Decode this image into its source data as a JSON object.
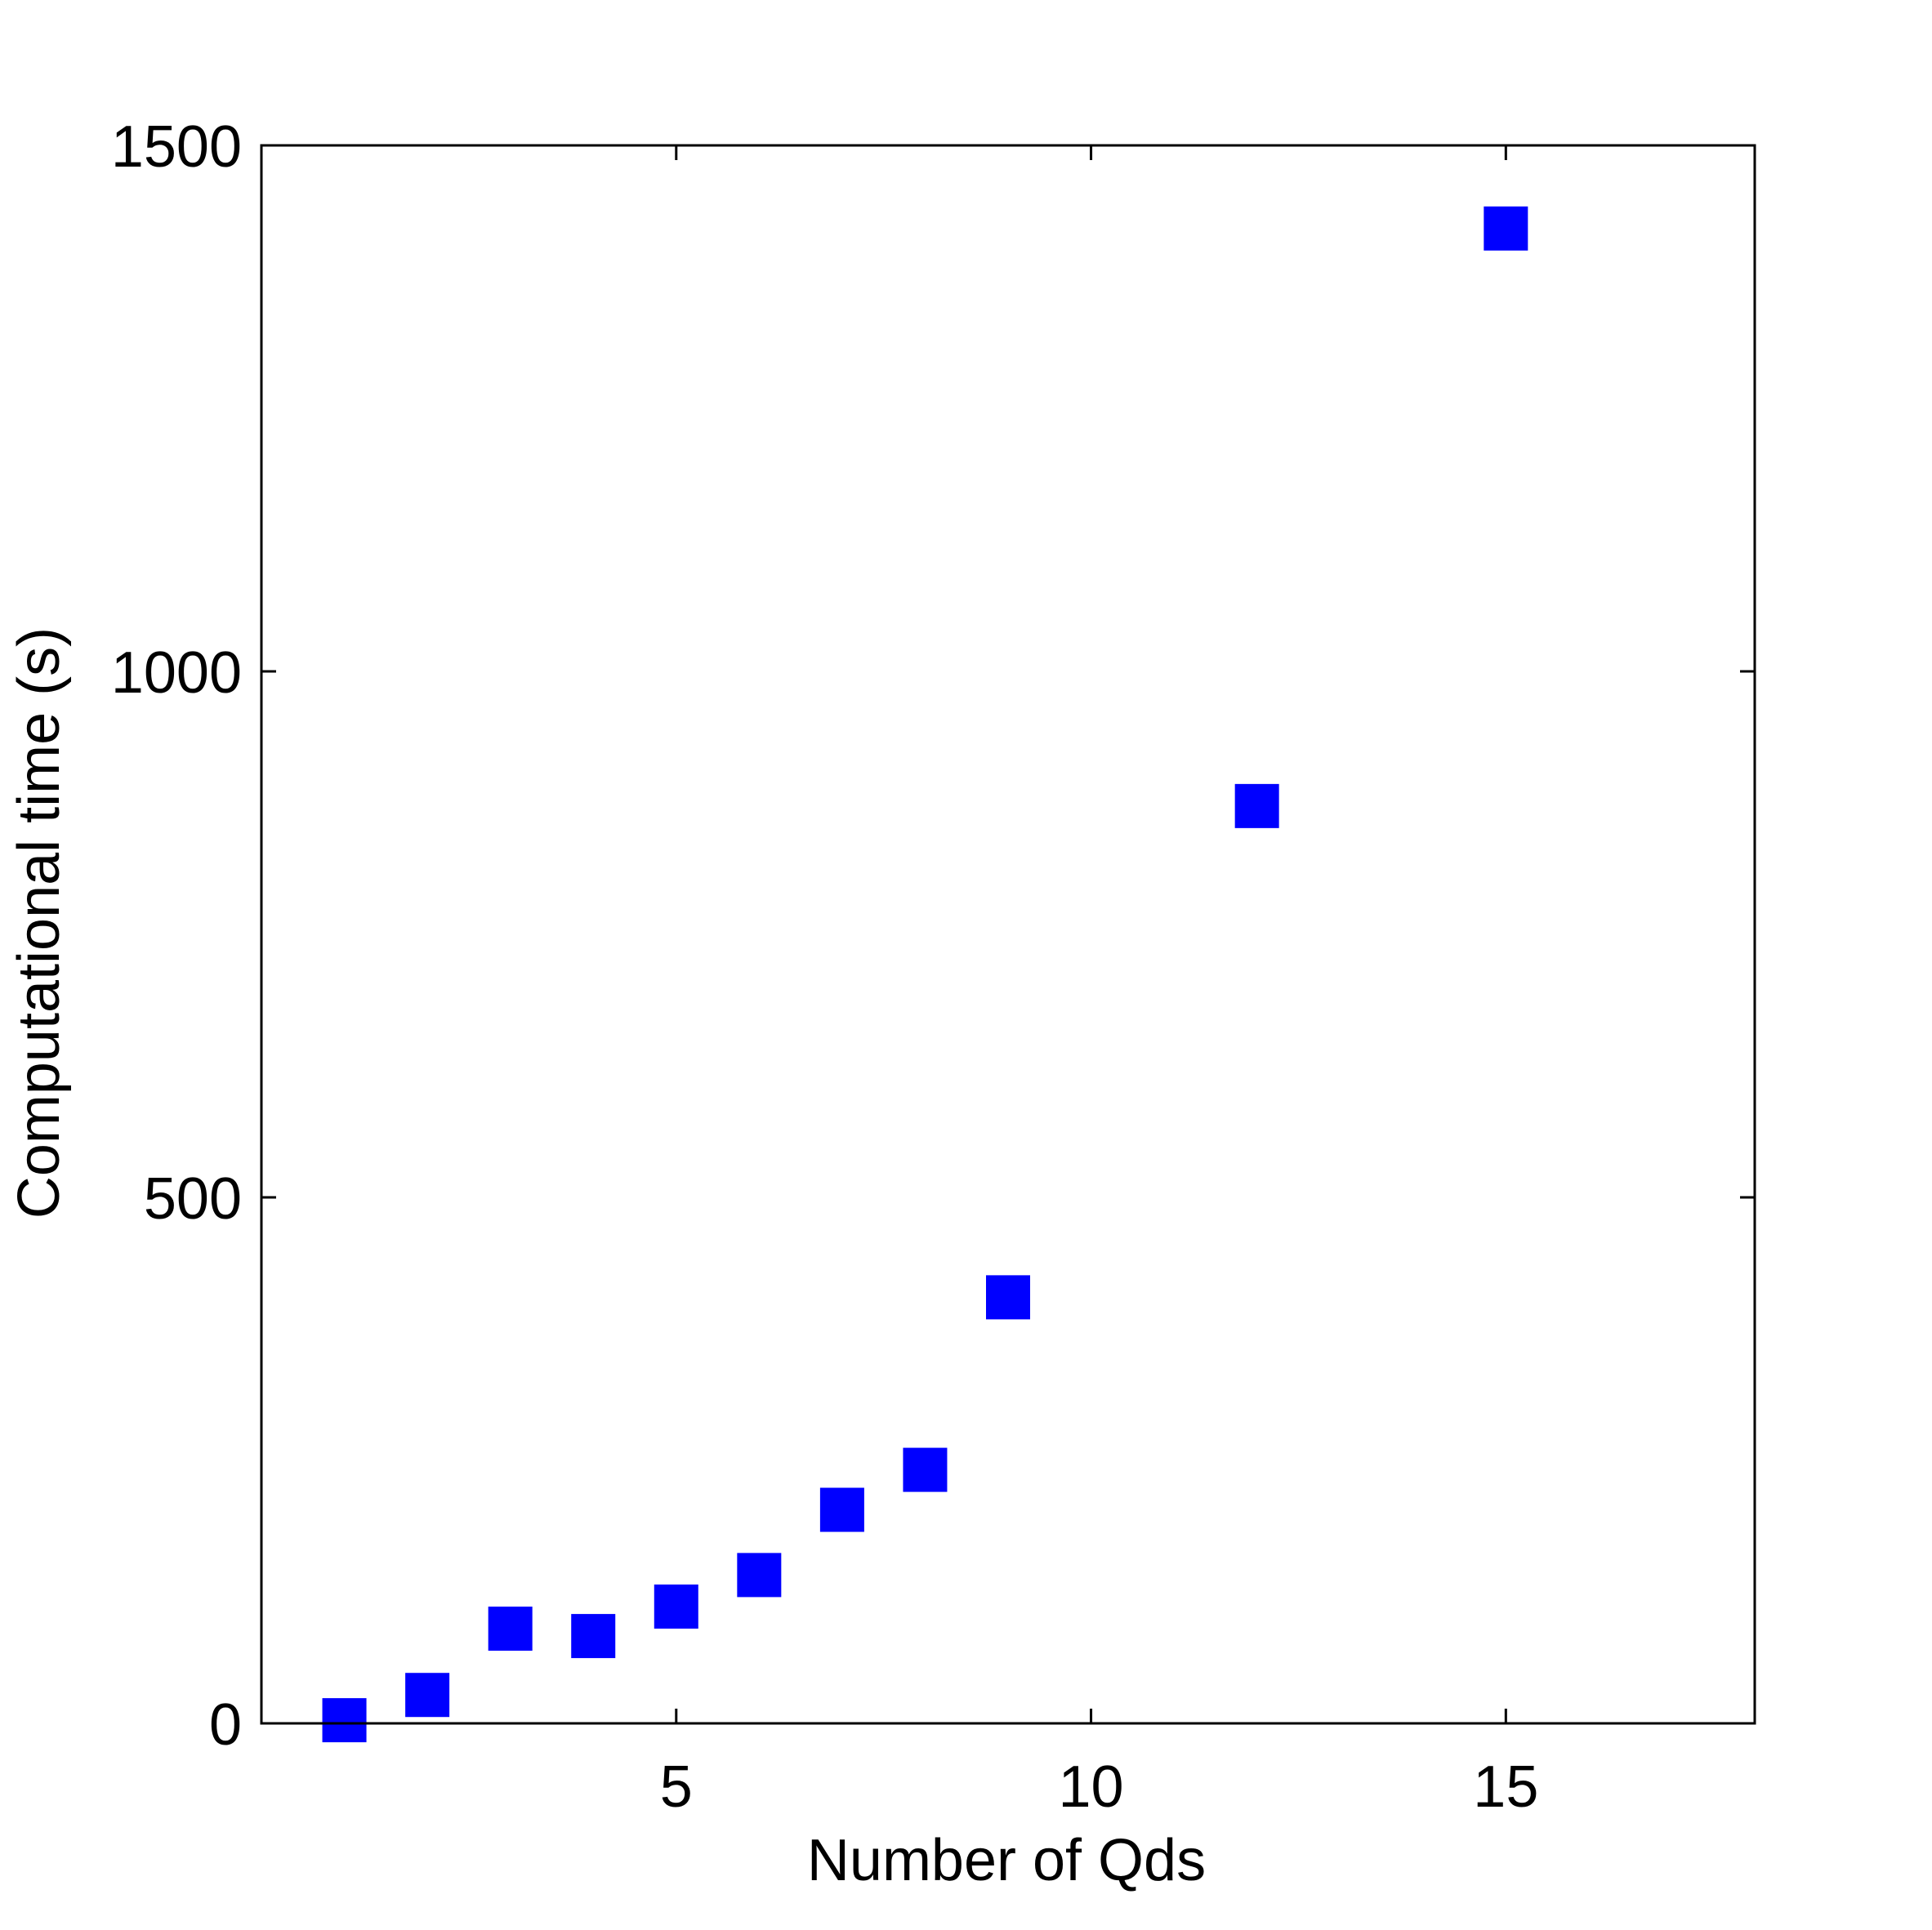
{
  "chart_data": {
    "type": "scatter",
    "title": "",
    "xlabel": "Number of Qds",
    "ylabel": "Computational time (s)",
    "xlim": [
      0,
      18
    ],
    "ylim": [
      0,
      1500
    ],
    "xticks": [
      5,
      10,
      15
    ],
    "xtick_labels": [
      "5",
      "10",
      "15"
    ],
    "yticks": [
      0,
      500,
      1000,
      1500
    ],
    "ytick_labels": [
      "0",
      "500",
      "1000",
      "1500"
    ],
    "grid": false,
    "legend": "none",
    "marker": "square",
    "colors": {
      "marker": "#0000ff",
      "axes": "#000000",
      "background": "#ffffff"
    },
    "series": [
      {
        "x": [
          1,
          2,
          3,
          4,
          5,
          6,
          7,
          8,
          9,
          12,
          15
        ],
        "y": [
          3,
          27,
          90,
          83,
          111,
          141,
          203,
          241,
          405,
          872,
          1421
        ]
      }
    ]
  }
}
